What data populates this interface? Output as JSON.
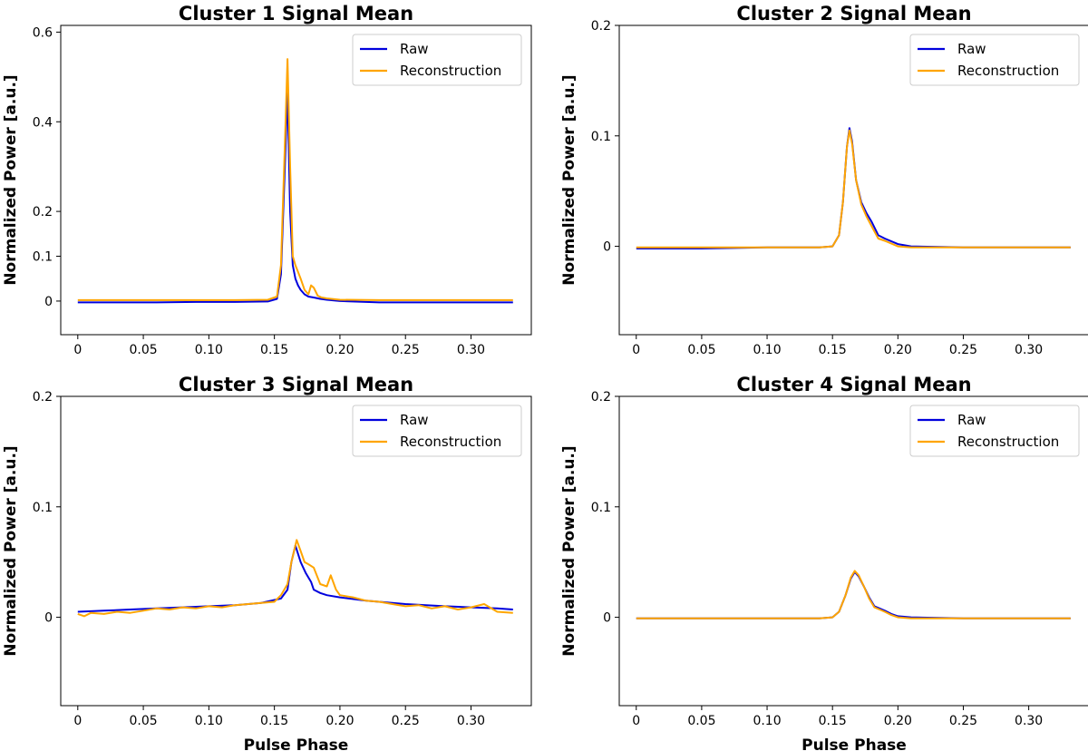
{
  "colors": {
    "raw": "#0000dd",
    "reconstruction": "#ffa500",
    "axis": "#000000",
    "legend_border": "#cccccc"
  },
  "legend": [
    "Raw",
    "Reconstruction"
  ],
  "chart_data": [
    {
      "type": "line",
      "title": "Cluster 1 Signal Mean",
      "xlabel": "",
      "ylabel": "Normalized Power [a.u.]",
      "xlim": [
        -0.013,
        0.346
      ],
      "ylim": [
        -0.075,
        0.615
      ],
      "xticks": [
        0,
        0.05,
        0.1,
        0.15,
        0.2,
        0.25,
        0.3
      ],
      "xtick_labels": [
        "0",
        "0.05",
        "0.10",
        "0.15",
        "0.20",
        "0.25",
        "0.30"
      ],
      "yticks": [
        0,
        0.1,
        0.2,
        0.4,
        0.6
      ],
      "ytick_labels": [
        "0",
        "0.1",
        "0.2",
        "0.4",
        "0.6"
      ],
      "legend_loc": "top-right",
      "series": [
        {
          "name": "Raw",
          "x": [
            0,
            0.03,
            0.06,
            0.09,
            0.12,
            0.145,
            0.152,
            0.155,
            0.158,
            0.16,
            0.162,
            0.164,
            0.166,
            0.168,
            0.17,
            0.173,
            0.176,
            0.18,
            0.185,
            0.19,
            0.2,
            0.23,
            0.26,
            0.3,
            0.332
          ],
          "y": [
            -0.003,
            -0.003,
            -0.003,
            -0.002,
            -0.002,
            -0.001,
            0.005,
            0.06,
            0.3,
            0.47,
            0.2,
            0.08,
            0.05,
            0.035,
            0.025,
            0.015,
            0.01,
            0.008,
            0.005,
            0.003,
            0.0,
            -0.003,
            -0.003,
            -0.003,
            -0.003
          ]
        },
        {
          "name": "Reconstruction",
          "x": [
            0,
            0.03,
            0.06,
            0.09,
            0.12,
            0.145,
            0.152,
            0.155,
            0.158,
            0.16,
            0.162,
            0.164,
            0.166,
            0.168,
            0.17,
            0.173,
            0.176,
            0.178,
            0.18,
            0.183,
            0.186,
            0.19,
            0.2,
            0.23,
            0.26,
            0.3,
            0.332
          ],
          "y": [
            0.002,
            0.002,
            0.002,
            0.002,
            0.002,
            0.003,
            0.01,
            0.08,
            0.35,
            0.54,
            0.3,
            0.1,
            0.08,
            0.065,
            0.05,
            0.025,
            0.015,
            0.035,
            0.03,
            0.012,
            0.008,
            0.006,
            0.003,
            0.002,
            0.002,
            0.002,
            0.002
          ]
        }
      ]
    },
    {
      "type": "line",
      "title": "Cluster 2 Signal Mean",
      "xlabel": "",
      "ylabel": "Normalized Power [a.u.]",
      "xlim": [
        -0.013,
        0.346
      ],
      "ylim": [
        -0.08,
        0.2
      ],
      "xticks": [
        0,
        0.05,
        0.1,
        0.15,
        0.2,
        0.25,
        0.3
      ],
      "xtick_labels": [
        "0",
        "0.05",
        "0.10",
        "0.15",
        "0.20",
        "0.25",
        "0.30"
      ],
      "yticks": [
        0,
        0.1,
        0.2
      ],
      "ytick_labels": [
        "0",
        "0.1",
        "0.2"
      ],
      "legend_loc": "top-right",
      "series": [
        {
          "name": "Raw",
          "x": [
            0,
            0.05,
            0.1,
            0.14,
            0.15,
            0.155,
            0.158,
            0.161,
            0.163,
            0.165,
            0.168,
            0.172,
            0.176,
            0.18,
            0.185,
            0.19,
            0.2,
            0.21,
            0.25,
            0.3,
            0.332
          ],
          "y": [
            -0.002,
            -0.002,
            -0.001,
            -0.001,
            0.0,
            0.01,
            0.04,
            0.09,
            0.107,
            0.095,
            0.06,
            0.04,
            0.03,
            0.022,
            0.01,
            0.007,
            0.002,
            0.0,
            -0.001,
            -0.001,
            -0.001
          ]
        },
        {
          "name": "Reconstruction",
          "x": [
            0,
            0.05,
            0.1,
            0.14,
            0.15,
            0.155,
            0.158,
            0.161,
            0.163,
            0.165,
            0.168,
            0.172,
            0.176,
            0.18,
            0.185,
            0.19,
            0.2,
            0.21,
            0.25,
            0.3,
            0.332
          ],
          "y": [
            -0.001,
            -0.001,
            -0.001,
            -0.001,
            0.0,
            0.01,
            0.04,
            0.09,
            0.105,
            0.093,
            0.06,
            0.038,
            0.027,
            0.018,
            0.007,
            0.005,
            0.0,
            -0.001,
            -0.001,
            -0.001,
            -0.001
          ]
        }
      ]
    },
    {
      "type": "line",
      "title": "Cluster 3 Signal Mean",
      "xlabel": "Pulse Phase",
      "ylabel": "Normalized Power [a.u.]",
      "xlim": [
        -0.013,
        0.346
      ],
      "ylim": [
        -0.08,
        0.2
      ],
      "xticks": [
        0,
        0.05,
        0.1,
        0.15,
        0.2,
        0.25,
        0.3
      ],
      "xtick_labels": [
        "0",
        "0.05",
        "0.10",
        "0.15",
        "0.20",
        "0.25",
        "0.30"
      ],
      "yticks": [
        0,
        0.1,
        0.2
      ],
      "ytick_labels": [
        "0",
        "0.1",
        "0.2"
      ],
      "legend_loc": "top-right",
      "series": [
        {
          "name": "Raw",
          "x": [
            0,
            0.02,
            0.04,
            0.06,
            0.08,
            0.1,
            0.12,
            0.14,
            0.155,
            0.16,
            0.163,
            0.166,
            0.17,
            0.174,
            0.178,
            0.18,
            0.185,
            0.19,
            0.2,
            0.22,
            0.25,
            0.28,
            0.3,
            0.32,
            0.332
          ],
          "y": [
            0.005,
            0.006,
            0.007,
            0.008,
            0.009,
            0.01,
            0.011,
            0.013,
            0.017,
            0.025,
            0.05,
            0.065,
            0.05,
            0.04,
            0.032,
            0.025,
            0.022,
            0.02,
            0.018,
            0.015,
            0.012,
            0.01,
            0.009,
            0.008,
            0.007
          ]
        },
        {
          "name": "Reconstruction",
          "x": [
            0,
            0.005,
            0.01,
            0.02,
            0.03,
            0.04,
            0.05,
            0.06,
            0.07,
            0.08,
            0.09,
            0.1,
            0.11,
            0.12,
            0.13,
            0.14,
            0.15,
            0.155,
            0.16,
            0.163,
            0.167,
            0.17,
            0.173,
            0.176,
            0.18,
            0.185,
            0.19,
            0.193,
            0.197,
            0.2,
            0.21,
            0.22,
            0.23,
            0.24,
            0.25,
            0.26,
            0.27,
            0.28,
            0.29,
            0.3,
            0.31,
            0.32,
            0.332
          ],
          "y": [
            0.003,
            0.001,
            0.004,
            0.003,
            0.005,
            0.004,
            0.006,
            0.008,
            0.007,
            0.009,
            0.008,
            0.01,
            0.009,
            0.011,
            0.012,
            0.013,
            0.014,
            0.02,
            0.03,
            0.05,
            0.07,
            0.06,
            0.05,
            0.048,
            0.045,
            0.03,
            0.028,
            0.038,
            0.025,
            0.02,
            0.018,
            0.015,
            0.014,
            0.012,
            0.01,
            0.011,
            0.008,
            0.01,
            0.007,
            0.009,
            0.012,
            0.005,
            0.004
          ]
        }
      ]
    },
    {
      "type": "line",
      "title": "Cluster 4 Signal Mean",
      "xlabel": "Pulse Phase",
      "ylabel": "Normalized Power [a.u.]",
      "xlim": [
        -0.013,
        0.346
      ],
      "ylim": [
        -0.08,
        0.2
      ],
      "xticks": [
        0,
        0.05,
        0.1,
        0.15,
        0.2,
        0.25,
        0.3
      ],
      "xtick_labels": [
        "0",
        "0.05",
        "0.10",
        "0.15",
        "0.20",
        "0.25",
        "0.30"
      ],
      "yticks": [
        0,
        0.1,
        0.2
      ],
      "ytick_labels": [
        "0",
        "0.1",
        "0.2"
      ],
      "legend_loc": "top-right",
      "series": [
        {
          "name": "Raw",
          "x": [
            0,
            0.05,
            0.1,
            0.14,
            0.15,
            0.155,
            0.16,
            0.164,
            0.167,
            0.17,
            0.174,
            0.178,
            0.182,
            0.186,
            0.19,
            0.195,
            0.2,
            0.21,
            0.25,
            0.3,
            0.332
          ],
          "y": [
            -0.001,
            -0.001,
            -0.001,
            -0.001,
            0.0,
            0.005,
            0.02,
            0.035,
            0.041,
            0.037,
            0.028,
            0.018,
            0.01,
            0.008,
            0.006,
            0.003,
            0.001,
            0.0,
            -0.001,
            -0.001,
            -0.001
          ]
        },
        {
          "name": "Reconstruction",
          "x": [
            0,
            0.05,
            0.1,
            0.14,
            0.15,
            0.155,
            0.16,
            0.164,
            0.167,
            0.17,
            0.174,
            0.178,
            0.182,
            0.186,
            0.19,
            0.195,
            0.2,
            0.21,
            0.25,
            0.3,
            0.332
          ],
          "y": [
            -0.001,
            -0.001,
            -0.001,
            -0.001,
            0.0,
            0.005,
            0.02,
            0.036,
            0.042,
            0.038,
            0.028,
            0.017,
            0.009,
            0.007,
            0.005,
            0.002,
            0.0,
            -0.001,
            -0.001,
            -0.001,
            -0.001
          ]
        }
      ]
    }
  ]
}
